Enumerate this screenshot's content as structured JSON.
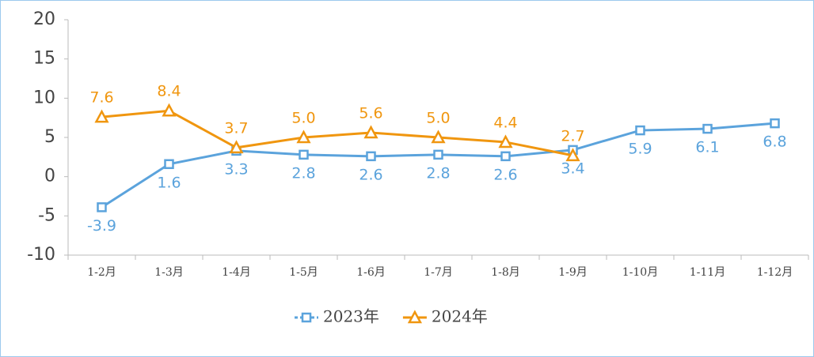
{
  "chart_data": {
    "type": "line",
    "categories": [
      "1-2月",
      "1-3月",
      "1-4月",
      "1-5月",
      "1-6月",
      "1-7月",
      "1-8月",
      "1-9月",
      "1-10月",
      "1-11月",
      "1-12月"
    ],
    "series": [
      {
        "name": "2023年",
        "color": "#5ba3dc",
        "marker": "square",
        "label_position": "below",
        "values": [
          -3.9,
          1.6,
          3.3,
          2.8,
          2.6,
          2.8,
          2.6,
          3.4,
          5.9,
          6.1,
          6.8
        ],
        "value_labels": [
          "-3.9",
          "1.6",
          "3.3",
          "2.8",
          "2.6",
          "2.8",
          "2.6",
          "3.4",
          "5.9",
          "6.1",
          "6.8"
        ]
      },
      {
        "name": "2024年",
        "color": "#f0960f",
        "marker": "triangle",
        "label_position": "above",
        "values": [
          7.6,
          8.4,
          3.7,
          5.0,
          5.6,
          5.0,
          4.4,
          2.7,
          null,
          null,
          null
        ],
        "value_labels": [
          "7.6",
          "8.4",
          "3.7",
          "5.0",
          "5.6",
          "5.0",
          "4.4",
          "2.7",
          null,
          null,
          null
        ]
      }
    ],
    "ylim": [
      -10,
      20
    ],
    "yticks": [
      -10,
      -5,
      0,
      5,
      10,
      15,
      20
    ],
    "grid": false,
    "legend": "bottom"
  }
}
